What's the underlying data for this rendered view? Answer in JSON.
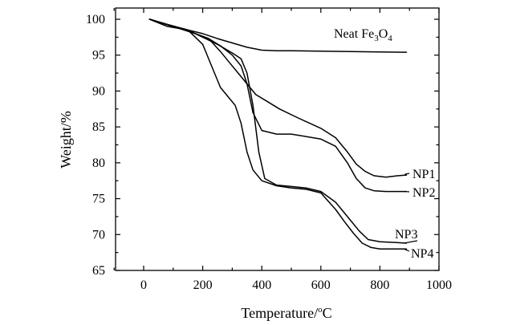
{
  "chart_data": {
    "type": "line",
    "xlabel": "Temperature/",
    "xlabel_unit": "oC",
    "ylabel": "Weight/%",
    "xlim": [
      -100,
      1000
    ],
    "ylim": [
      65,
      102
    ],
    "x_ticks": [
      0,
      200,
      400,
      600,
      800,
      1000
    ],
    "y_ticks": [
      65,
      70,
      75,
      80,
      85,
      90,
      95,
      100
    ],
    "grid": false,
    "legend": "none",
    "series": [
      {
        "name": "Neat Fe3O4",
        "label_parts": [
          "Neat Fe",
          "3",
          "O",
          "4"
        ],
        "x": [
          20,
          60,
          100,
          150,
          200,
          250,
          300,
          350,
          400,
          450,
          500,
          600,
          700,
          800,
          890
        ],
        "y": [
          100,
          99.5,
          99,
          98.5,
          98,
          97.3,
          96.7,
          96.1,
          95.7,
          95.6,
          95.6,
          95.55,
          95.5,
          95.45,
          95.4
        ]
      },
      {
        "name": "NP1",
        "label_parts": [
          "NP1"
        ],
        "x": [
          20,
          100,
          175,
          220,
          260,
          290,
          320,
          350,
          380,
          420,
          460,
          520,
          600,
          650,
          690,
          720,
          750,
          780,
          820,
          860,
          890
        ],
        "y": [
          100,
          99,
          98,
          97.3,
          95.5,
          94,
          92.5,
          91,
          89.5,
          88.5,
          87.5,
          86.3,
          84.8,
          83.5,
          81.5,
          79.8,
          78.8,
          78.2,
          78,
          78.2,
          78.3
        ]
      },
      {
        "name": "NP2",
        "label_parts": [
          "NP2"
        ],
        "x": [
          20,
          100,
          175,
          220,
          260,
          300,
          330,
          350,
          370,
          400,
          450,
          500,
          600,
          650,
          690,
          720,
          750,
          780,
          820,
          860,
          890
        ],
        "y": [
          100,
          99,
          98,
          97.3,
          96.3,
          95,
          93.5,
          91,
          87,
          84.5,
          84,
          84,
          83.3,
          82.3,
          80,
          77.8,
          76.5,
          76.1,
          76,
          76,
          76
        ]
      },
      {
        "name": "NP3",
        "label_parts": [
          "NP3"
        ],
        "x": [
          20,
          80,
          150,
          200,
          250,
          300,
          330,
          350,
          370,
          390,
          410,
          450,
          500,
          550,
          600,
          650,
          700,
          730,
          760,
          800,
          850,
          890
        ],
        "y": [
          100,
          99.3,
          98.5,
          97.5,
          96.5,
          95.3,
          94.5,
          92.5,
          88,
          81.5,
          77.8,
          76.9,
          76.7,
          76.5,
          76,
          74.5,
          72,
          70.5,
          69.3,
          69,
          68.9,
          68.8
        ]
      },
      {
        "name": "NP4",
        "label_parts": [
          "NP4"
        ],
        "x": [
          20,
          80,
          150,
          200,
          230,
          260,
          280,
          310,
          330,
          350,
          370,
          400,
          450,
          500,
          550,
          600,
          650,
          680,
          710,
          740,
          770,
          800,
          850,
          890
        ],
        "y": [
          100,
          99,
          98.5,
          96.5,
          93.5,
          90.5,
          89.5,
          88,
          85.5,
          81.5,
          79,
          77.5,
          76.8,
          76.5,
          76.3,
          75.8,
          73.5,
          71.8,
          70.2,
          68.8,
          68.2,
          68,
          68,
          68
        ]
      }
    ]
  }
}
